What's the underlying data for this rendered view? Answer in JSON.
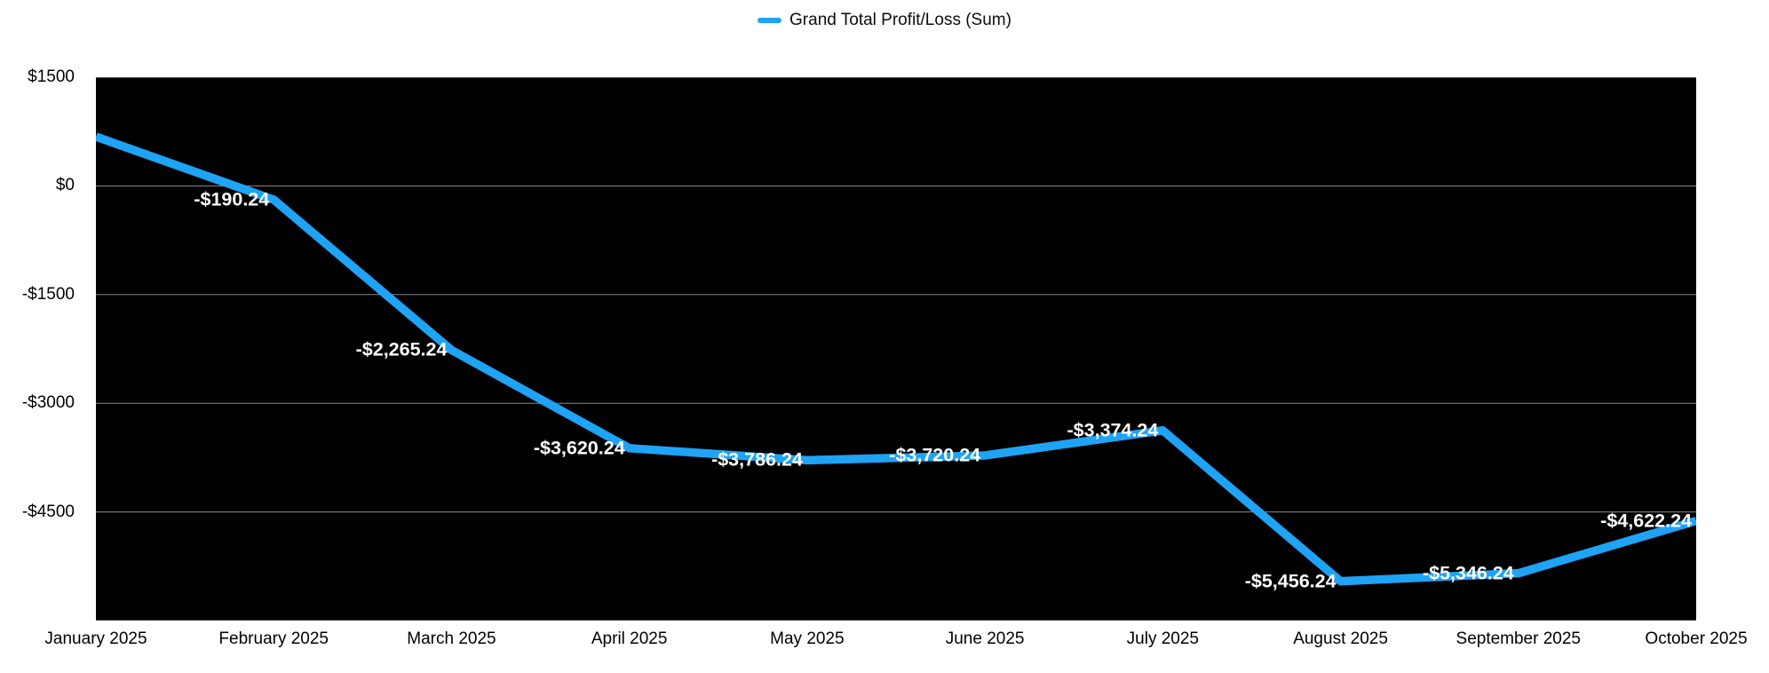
{
  "legend": {
    "label": "Grand Total Profit/Loss (Sum)"
  },
  "colors": {
    "series": "#1FA3F5",
    "plot_background": "#000000",
    "gridline": "#8A8A8A",
    "data_label": "#FFFFFF",
    "axis_label": "#000000"
  },
  "chart_data": {
    "type": "line",
    "title": "",
    "legend_position": "top-center",
    "grid": true,
    "x": [
      "January 2025",
      "February 2025",
      "March 2025",
      "April 2025",
      "May 2025",
      "June 2025",
      "July 2025",
      "August 2025",
      "September 2025",
      "October 2025"
    ],
    "series": [
      {
        "name": "Grand Total Profit/Loss (Sum)",
        "color": "#1FA3F5",
        "values": [
          680,
          -190.24,
          -2265.24,
          -3620.24,
          -3786.24,
          -3720.24,
          -3374.24,
          -5456.24,
          -5346.24,
          -4622.24
        ],
        "value_labels": [
          "",
          "-$190.24",
          "-$2,265.24",
          "-$3,620.24",
          "-$3,786.24",
          "-$3,720.24",
          "-$3,374.24",
          "-$5,456.24",
          "-$5,346.24",
          "-$4,622.24"
        ]
      }
    ],
    "y_ticks": [
      {
        "value": 1500,
        "label": "$1500"
      },
      {
        "value": 0,
        "label": "$0"
      },
      {
        "value": -1500,
        "label": "-$1500"
      },
      {
        "value": -3000,
        "label": "-$3000"
      },
      {
        "value": -4500,
        "label": "-$4500"
      },
      {
        "value": -6000,
        "label": ""
      }
    ],
    "ylim": [
      -6000,
      1500
    ]
  }
}
